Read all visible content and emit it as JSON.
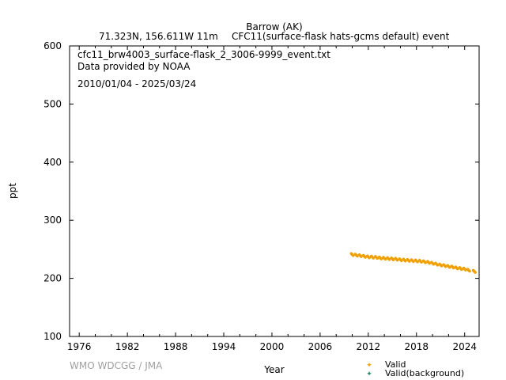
{
  "header": {
    "station": "Barrow (AK)",
    "location": "71.323N, 156.611W 11m",
    "species": "CFC11(surface-flask hats-gcms default) event"
  },
  "annotations": {
    "filename": "cfc11_brw4003_surface-flask_2_3006-9999_event.txt",
    "provider": "Data provided by NOAA",
    "date_range": "2010/01/04 - 2025/03/24"
  },
  "credit": "WMO WDCGG / JMA",
  "legend": {
    "valid": "Valid",
    "valid_background": "Valid(background)",
    "colors": {
      "valid": "#f0a000",
      "valid_background": "#2a8a6a"
    }
  },
  "chart_data": {
    "type": "scatter",
    "xlabel": "Year",
    "ylabel": "ppt",
    "xlim": [
      1974.8,
      2025.8
    ],
    "ylim": [
      100,
      600
    ],
    "x_ticks": [
      "1976",
      "1982",
      "1988",
      "1994",
      "2000",
      "2006",
      "2012",
      "2018",
      "2024"
    ],
    "y_ticks": [
      "100",
      "200",
      "300",
      "400",
      "500",
      "600"
    ],
    "grid": false,
    "legend_position": "bottom-right",
    "series": [
      {
        "name": "Valid",
        "color": "#f0a000",
        "points": [
          [
            2010.0,
            241
          ],
          [
            2010.5,
            240
          ],
          [
            2011.0,
            239
          ],
          [
            2011.5,
            238
          ],
          [
            2012.0,
            237
          ],
          [
            2012.5,
            236.5
          ],
          [
            2013.0,
            236
          ],
          [
            2013.5,
            235
          ],
          [
            2014.0,
            234.5
          ],
          [
            2014.5,
            234
          ],
          [
            2015.0,
            233.5
          ],
          [
            2015.5,
            233
          ],
          [
            2016.0,
            232
          ],
          [
            2016.5,
            231.5
          ],
          [
            2017.0,
            231
          ],
          [
            2017.5,
            230.5
          ],
          [
            2018.0,
            230
          ],
          [
            2018.5,
            229.5
          ],
          [
            2019.0,
            228.5
          ],
          [
            2019.5,
            227.5
          ],
          [
            2020.0,
            226
          ],
          [
            2020.5,
            224.5
          ],
          [
            2021.0,
            223
          ],
          [
            2021.5,
            222
          ],
          [
            2022.0,
            220.5
          ],
          [
            2022.5,
            219.5
          ],
          [
            2023.0,
            218
          ],
          [
            2023.5,
            217
          ],
          [
            2024.0,
            216
          ],
          [
            2024.5,
            214
          ],
          [
            2025.2,
            212
          ]
        ]
      },
      {
        "name": "Valid(background)",
        "color": "#2a8a6a",
        "points": []
      }
    ]
  }
}
